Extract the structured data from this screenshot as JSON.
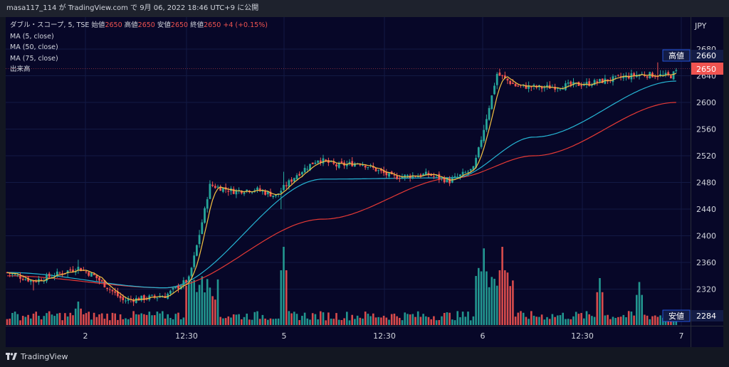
{
  "header": {
    "user": "masa117_114",
    "connector": "が",
    "site": "TradingView.com",
    "connector2": "で",
    "date": "9月 06, 2022 18:46 UTC+9",
    "suffix": "に公開"
  },
  "legend": {
    "symbol": "ダブル・スコープ, 5, TSE",
    "open_label": "始値",
    "open_value": "2650",
    "high_label": "高値",
    "high_value": "2650",
    "low_label": "安値",
    "low_value": "2650",
    "close_label": "終値",
    "close_value": "2650",
    "change": "+4 (+0.15%)",
    "ma5": "MA (5, close)",
    "ma50": "MA (50, close)",
    "ma75": "MA (75, close)",
    "volume": "出来高"
  },
  "axis": {
    "currency": "JPY",
    "y_ticks": [
      "2680",
      "2640",
      "2600",
      "2560",
      "2520",
      "2480",
      "2440",
      "2400",
      "2360",
      "2320"
    ],
    "x_ticks": [
      "2",
      "12:30",
      "5",
      "12:30",
      "6",
      "12:30",
      "7"
    ]
  },
  "price_labels": {
    "high_tag": "高値",
    "high_value": "2660",
    "last_value": "2650",
    "low_tag": "安値",
    "low_value": "2284"
  },
  "branding": {
    "name": "TradingView"
  },
  "colors": {
    "up": "#26a69a",
    "down": "#ef5350",
    "ma5": "#f5c242",
    "ma50": "#26b5d4",
    "ma75": "#e53935",
    "background": "#070728"
  },
  "chart_data": {
    "type": "candlestick",
    "interval": "5 min",
    "y_range": [
      2284,
      2690
    ],
    "key_points": [
      {
        "x": 0,
        "p": 2345
      },
      {
        "x": 10,
        "p": 2332
      },
      {
        "x": 22,
        "p": 2346
      },
      {
        "x": 27,
        "p": 2352
      },
      {
        "x": 33,
        "p": 2340
      },
      {
        "x": 44,
        "p": 2303
      },
      {
        "x": 60,
        "p": 2310
      },
      {
        "x": 69,
        "p": 2335
      },
      {
        "x": 73,
        "p": 2402
      },
      {
        "x": 77,
        "p": 2476
      },
      {
        "x": 86,
        "p": 2467
      },
      {
        "x": 94,
        "p": 2470
      },
      {
        "x": 102,
        "p": 2460
      },
      {
        "x": 110,
        "p": 2492
      },
      {
        "x": 118,
        "p": 2515
      },
      {
        "x": 125,
        "p": 2505
      },
      {
        "x": 134,
        "p": 2510
      },
      {
        "x": 146,
        "p": 2488
      },
      {
        "x": 160,
        "p": 2492
      },
      {
        "x": 168,
        "p": 2482
      },
      {
        "x": 177,
        "p": 2500
      },
      {
        "x": 181,
        "p": 2560
      },
      {
        "x": 186,
        "p": 2643
      },
      {
        "x": 193,
        "p": 2625
      },
      {
        "x": 203,
        "p": 2622
      },
      {
        "x": 220,
        "p": 2628
      },
      {
        "x": 240,
        "p": 2642
      },
      {
        "x": 252,
        "p": 2640
      },
      {
        "x": 254,
        "p": 2646
      }
    ],
    "ma_trend": {
      "ma50": [
        [
          0,
          2345
        ],
        [
          60,
          2322
        ],
        [
          120,
          2485
        ],
        [
          170,
          2487
        ],
        [
          200,
          2548
        ],
        [
          254,
          2632
        ]
      ],
      "ma75": [
        [
          0,
          2340
        ],
        [
          60,
          2322
        ],
        [
          120,
          2425
        ],
        [
          170,
          2487
        ],
        [
          200,
          2520
        ],
        [
          254,
          2600
        ]
      ]
    },
    "volume_spikes": [
      {
        "x": 27,
        "level": 0.3
      },
      {
        "x": 105,
        "level": 1.0
      },
      {
        "x": 181,
        "level": 0.98
      },
      {
        "x": 188,
        "level": 1.0
      },
      {
        "x": 225,
        "level": 0.6
      },
      {
        "x": 240,
        "level": 0.55
      }
    ]
  }
}
